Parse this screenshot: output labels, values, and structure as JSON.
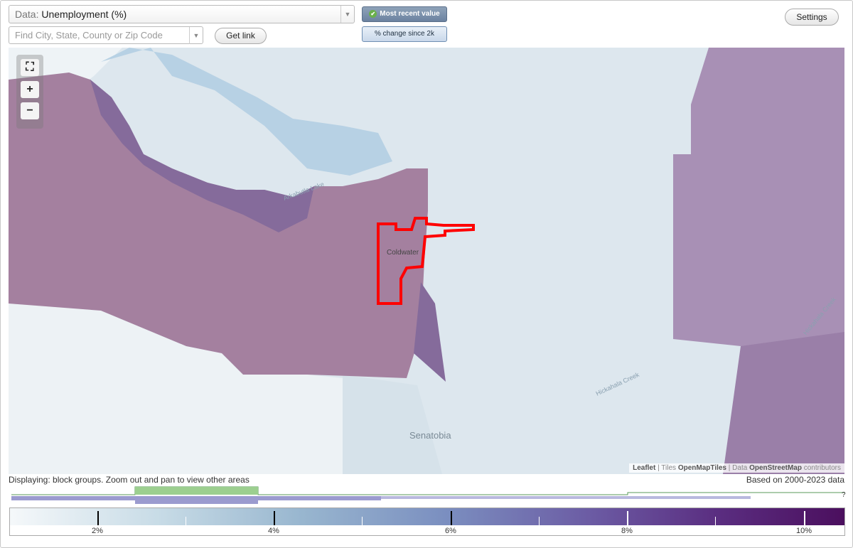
{
  "data_selector": {
    "prefix": "Data:",
    "value": "Unemployment (%)"
  },
  "find_input": {
    "placeholder": "Find City, State, County or Zip Code"
  },
  "buttons": {
    "get_link": "Get link",
    "settings": "Settings",
    "most_recent": "Most recent value",
    "pct_change": "% change since 2k"
  },
  "map": {
    "labels": {
      "city": "Coldwater",
      "town": "Senatobia",
      "lake": "Arkabutla Lake",
      "creek1": "Hickahala Creek",
      "creek2": "Hickahala Creek"
    },
    "colors": {
      "light": "#dfe8ee",
      "mauve": "#a4809f",
      "purple": "#856b9b",
      "lake": "#b7d1e4",
      "highlight": "#ff0000"
    }
  },
  "attribution": {
    "leaflet": "Leaflet",
    "sep1": " | Tiles ",
    "tiles": "OpenMapTiles",
    "sep2": " | Data ",
    "osm": "OpenStreetMap",
    "contrib": " contributors"
  },
  "status_text": "Displaying: block groups. Zoom out and pan to view other areas",
  "based_on": "Based on 2000-2023 data",
  "legend": {
    "labels": [
      "2%",
      "4%",
      "6%",
      "8%",
      "10%"
    ],
    "help": "?"
  }
}
